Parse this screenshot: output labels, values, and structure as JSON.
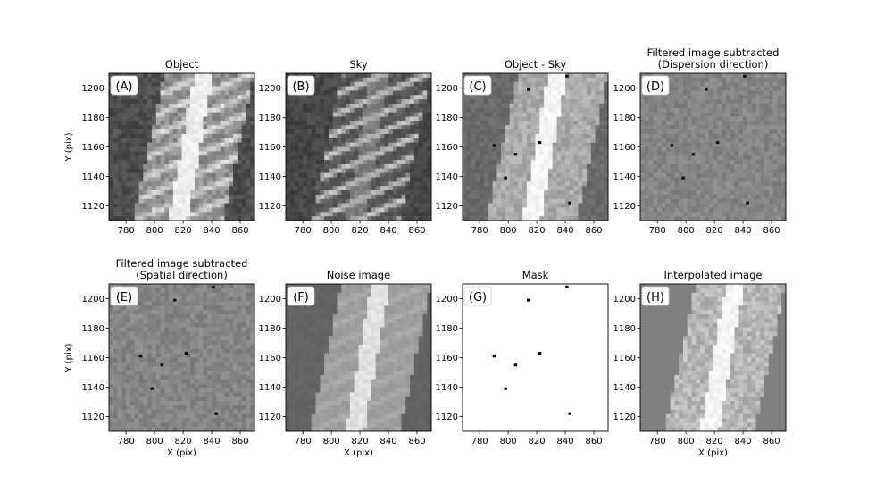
{
  "figure": {
    "panels": [
      {
        "label": "(A)",
        "title": [
          "Object"
        ],
        "kind": "object",
        "ylabels": true,
        "xlabel": false
      },
      {
        "label": "(B)",
        "title": [
          "Sky"
        ],
        "kind": "sky",
        "ylabels": true,
        "xlabel": false
      },
      {
        "label": "(C)",
        "title": [
          "Object - Sky"
        ],
        "kind": "diff",
        "ylabels": true,
        "xlabel": false
      },
      {
        "label": "(D)",
        "title": [
          "Filtered image subtracted",
          "(Dispersion direction)"
        ],
        "kind": "resid",
        "ylabels": true,
        "xlabel": false
      },
      {
        "label": "(E)",
        "title": [
          "Filtered image subtracted",
          "(Spatial direction)"
        ],
        "kind": "resid",
        "ylabels": true,
        "xlabel": true
      },
      {
        "label": "(F)",
        "title": [
          "Noise image"
        ],
        "kind": "noise",
        "ylabels": true,
        "xlabel": true
      },
      {
        "label": "(G)",
        "title": [
          "Mask"
        ],
        "kind": "mask",
        "ylabels": true,
        "xlabel": false
      },
      {
        "label": "(H)",
        "title": [
          "Interpolated image"
        ],
        "kind": "interp",
        "ylabels": true,
        "xlabel": true
      }
    ]
  },
  "chart_data": {
    "type": "heatmap",
    "xlabel": "X (pix)",
    "ylabel": "Y (pix)",
    "xlim": [
      768,
      870
    ],
    "ylim": [
      1110,
      1210
    ],
    "xticks": [
      780,
      800,
      820,
      840,
      860
    ],
    "yticks": [
      1120,
      1140,
      1160,
      1180,
      1200
    ],
    "colormap": "gray",
    "slit": {
      "edges_y1110": [
        785,
        848
      ],
      "edges_y1210": [
        807,
        870
      ],
      "bright_trace_y1110": [
        810,
        823
      ],
      "bright_trace_y1210": [
        828,
        841
      ]
    },
    "masked_pixels": [
      {
        "x": 790,
        "y": 1161
      },
      {
        "x": 814,
        "y": 1199
      },
      {
        "x": 822,
        "y": 1163
      },
      {
        "x": 805,
        "y": 1155
      },
      {
        "x": 798,
        "y": 1139
      },
      {
        "x": 843,
        "y": 1122
      },
      {
        "x": 841,
        "y": 1208
      }
    ]
  }
}
